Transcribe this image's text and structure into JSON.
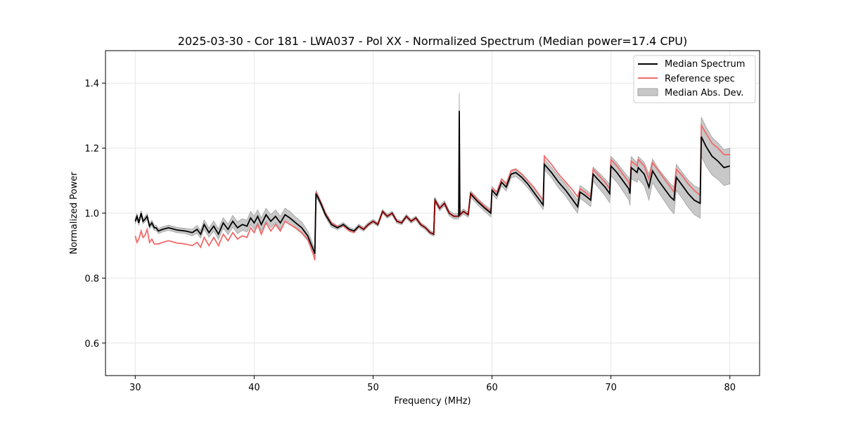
{
  "chart_data": {
    "type": "line",
    "title": "2025-03-30 - Cor 181 - LWA037 - Pol XX - Normalized Spectrum (Median power=17.4 CPU)",
    "xlabel": "Frequency (MHz)",
    "ylabel": "Normalized Power",
    "xlim": [
      27.5,
      82.5
    ],
    "ylim": [
      0.5,
      1.5
    ],
    "xticks": [
      30,
      40,
      50,
      60,
      70,
      80
    ],
    "yticks": [
      0.6,
      0.8,
      1.0,
      1.2,
      1.4
    ],
    "xtick_labels": [
      "30",
      "40",
      "50",
      "60",
      "70",
      "80"
    ],
    "ytick_labels": [
      "0.6",
      "0.8",
      "1.0",
      "1.2",
      "1.4"
    ],
    "grid": true,
    "legend_position": "top-right",
    "colors": {
      "median": "#000000",
      "reference": "#f06a6a",
      "mad_fill": "#c8c8c8",
      "mad_edge": "#a0a0a0",
      "overlap": "#8b0000"
    },
    "series": [
      {
        "name": "Median Spectrum",
        "x": [
          30.0,
          30.15,
          30.3,
          30.5,
          30.65,
          30.8,
          31.0,
          31.2,
          31.4,
          31.6,
          31.75,
          31.95,
          32.3,
          32.8,
          33.5,
          34.2,
          34.8,
          35.2,
          35.5,
          35.8,
          36.2,
          36.6,
          37.0,
          37.4,
          37.8,
          38.2,
          38.6,
          39.0,
          39.4,
          39.7,
          40.0,
          40.3,
          40.6,
          41.0,
          41.4,
          41.8,
          42.2,
          42.6,
          43.0,
          43.5,
          44.0,
          44.5,
          45.0,
          45.1,
          45.2,
          45.6,
          46.0,
          46.5,
          47.0,
          47.5,
          48.0,
          48.4,
          48.8,
          49.2,
          49.6,
          50.0,
          50.4,
          50.8,
          51.2,
          51.6,
          52.0,
          52.4,
          52.8,
          53.2,
          53.6,
          54.0,
          54.4,
          54.8,
          55.1,
          55.2,
          55.6,
          56.0,
          56.4,
          56.8,
          57.2,
          57.25,
          57.3,
          57.6,
          58.0,
          58.2,
          58.3,
          58.8,
          59.4,
          59.9,
          60.0,
          60.4,
          60.8,
          61.2,
          61.6,
          62.0,
          62.5,
          63.0,
          63.5,
          64.0,
          64.3,
          64.4,
          65.0,
          65.6,
          66.2,
          66.8,
          67.2,
          67.4,
          67.8,
          68.3,
          68.5,
          69.0,
          69.5,
          69.9,
          70.0,
          70.5,
          71.0,
          71.5,
          71.6,
          71.7,
          72.2,
          72.3,
          72.8,
          73.2,
          73.5,
          74.0,
          74.5,
          75.0,
          75.3,
          75.5,
          76.0,
          76.5,
          77.0,
          77.5,
          77.6,
          78.0,
          78.5,
          79.0,
          79.5,
          80.0
        ],
        "values": [
          0.975,
          0.99,
          0.97,
          1.0,
          0.975,
          0.98,
          0.99,
          0.96,
          0.97,
          0.955,
          0.955,
          0.945,
          0.95,
          0.955,
          0.948,
          0.945,
          0.94,
          0.95,
          0.935,
          0.965,
          0.94,
          0.96,
          0.935,
          0.97,
          0.95,
          0.975,
          0.955,
          0.965,
          0.96,
          0.985,
          0.97,
          0.99,
          0.965,
          0.995,
          0.975,
          0.99,
          0.97,
          0.995,
          0.985,
          0.97,
          0.955,
          0.93,
          0.885,
          0.875,
          1.06,
          1.03,
          0.995,
          0.965,
          0.955,
          0.965,
          0.95,
          0.945,
          0.96,
          0.95,
          0.965,
          0.975,
          0.965,
          1.005,
          0.99,
          1.0,
          0.975,
          0.97,
          0.99,
          0.975,
          0.985,
          0.965,
          0.955,
          0.94,
          0.935,
          1.04,
          1.015,
          1.03,
          1.0,
          0.99,
          0.99,
          1.315,
          0.995,
          1.005,
          0.995,
          1.06,
          1.055,
          1.035,
          1.015,
          1.0,
          1.07,
          1.055,
          1.095,
          1.08,
          1.12,
          1.125,
          1.11,
          1.09,
          1.065,
          1.04,
          1.025,
          1.15,
          1.125,
          1.095,
          1.07,
          1.04,
          1.02,
          1.065,
          1.055,
          1.04,
          1.12,
          1.1,
          1.08,
          1.06,
          1.145,
          1.125,
          1.1,
          1.075,
          1.06,
          1.14,
          1.125,
          1.14,
          1.12,
          1.08,
          1.13,
          1.1,
          1.075,
          1.05,
          1.04,
          1.11,
          1.085,
          1.06,
          1.04,
          1.03,
          1.235,
          1.205,
          1.175,
          1.16,
          1.14,
          1.145
        ]
      },
      {
        "name": "Reference spec",
        "x": [
          30.0,
          30.15,
          30.3,
          30.5,
          30.65,
          30.8,
          31.0,
          31.2,
          31.4,
          31.6,
          31.75,
          31.95,
          32.3,
          32.8,
          33.5,
          34.2,
          34.8,
          35.2,
          35.5,
          35.8,
          36.2,
          36.6,
          37.0,
          37.4,
          37.8,
          38.2,
          38.6,
          39.0,
          39.4,
          39.7,
          40.0,
          40.3,
          40.6,
          41.0,
          41.4,
          41.8,
          42.2,
          42.6,
          43.0,
          43.5,
          44.0,
          44.5,
          45.0,
          45.1,
          45.2,
          45.6,
          46.0,
          46.5,
          47.0,
          47.5,
          48.0,
          48.4,
          48.8,
          49.2,
          49.6,
          50.0,
          50.4,
          50.8,
          51.2,
          51.6,
          52.0,
          52.4,
          52.8,
          53.2,
          53.6,
          54.0,
          54.4,
          54.8,
          55.1,
          55.2,
          55.6,
          56.0,
          56.4,
          56.8,
          57.2,
          57.25,
          57.3,
          57.6,
          58.0,
          58.2,
          58.3,
          58.8,
          59.4,
          59.9,
          60.0,
          60.4,
          60.8,
          61.2,
          61.6,
          62.0,
          62.5,
          63.0,
          63.5,
          64.0,
          64.3,
          64.4,
          65.0,
          65.6,
          66.2,
          66.8,
          67.2,
          67.4,
          67.8,
          68.3,
          68.5,
          69.0,
          69.5,
          69.9,
          70.0,
          70.5,
          71.0,
          71.5,
          71.6,
          71.7,
          72.2,
          72.3,
          72.8,
          73.2,
          73.5,
          74.0,
          74.5,
          75.0,
          75.3,
          75.5,
          76.0,
          76.5,
          77.0,
          77.5,
          77.6,
          78.0,
          78.5,
          79.0,
          79.5,
          80.0
        ],
        "values": [
          0.93,
          0.91,
          0.92,
          0.945,
          0.925,
          0.93,
          0.95,
          0.91,
          0.92,
          0.905,
          0.905,
          0.905,
          0.91,
          0.915,
          0.908,
          0.905,
          0.9,
          0.91,
          0.895,
          0.925,
          0.9,
          0.925,
          0.9,
          0.935,
          0.915,
          0.94,
          0.92,
          0.93,
          0.925,
          0.955,
          0.94,
          0.965,
          0.935,
          0.97,
          0.945,
          0.965,
          0.945,
          0.975,
          0.965,
          0.955,
          0.94,
          0.92,
          0.87,
          0.855,
          1.065,
          1.035,
          1.0,
          0.97,
          0.96,
          0.96,
          0.945,
          0.94,
          0.96,
          0.95,
          0.965,
          0.975,
          0.965,
          1.005,
          0.99,
          1.0,
          0.975,
          0.97,
          0.99,
          0.975,
          0.985,
          0.965,
          0.955,
          0.94,
          0.935,
          1.04,
          1.015,
          1.03,
          1.0,
          0.99,
          0.99,
          1.2,
          0.995,
          1.005,
          0.995,
          1.06,
          1.06,
          1.04,
          1.02,
          1.005,
          1.075,
          1.065,
          1.105,
          1.09,
          1.13,
          1.135,
          1.12,
          1.1,
          1.08,
          1.055,
          1.04,
          1.175,
          1.15,
          1.12,
          1.095,
          1.07,
          1.05,
          1.075,
          1.065,
          1.05,
          1.135,
          1.115,
          1.095,
          1.075,
          1.165,
          1.145,
          1.12,
          1.095,
          1.08,
          1.16,
          1.145,
          1.165,
          1.145,
          1.105,
          1.155,
          1.13,
          1.105,
          1.08,
          1.065,
          1.135,
          1.115,
          1.09,
          1.07,
          1.055,
          1.27,
          1.245,
          1.215,
          1.2,
          1.18,
          1.18
        ]
      },
      {
        "name": "Median Abs. Dev.",
        "x": [
          30.0,
          30.15,
          30.3,
          30.5,
          30.65,
          30.8,
          31.0,
          31.2,
          31.4,
          31.6,
          31.75,
          31.95,
          32.3,
          32.8,
          33.5,
          34.2,
          34.8,
          35.2,
          35.5,
          35.8,
          36.2,
          36.6,
          37.0,
          37.4,
          37.8,
          38.2,
          38.6,
          39.0,
          39.4,
          39.7,
          40.0,
          40.3,
          40.6,
          41.0,
          41.4,
          41.8,
          42.2,
          42.6,
          43.0,
          43.5,
          44.0,
          44.5,
          45.0,
          45.1,
          45.2,
          45.6,
          46.0,
          46.5,
          47.0,
          47.5,
          48.0,
          48.4,
          48.8,
          49.2,
          49.6,
          50.0,
          50.4,
          50.8,
          51.2,
          51.6,
          52.0,
          52.4,
          52.8,
          53.2,
          53.6,
          54.0,
          54.4,
          54.8,
          55.1,
          55.2,
          55.6,
          56.0,
          56.4,
          56.8,
          57.2,
          57.25,
          57.3,
          57.6,
          58.0,
          58.2,
          58.3,
          58.8,
          59.4,
          59.9,
          60.0,
          60.4,
          60.8,
          61.2,
          61.6,
          62.0,
          62.5,
          63.0,
          63.5,
          64.0,
          64.3,
          64.4,
          65.0,
          65.6,
          66.2,
          66.8,
          67.2,
          67.4,
          67.8,
          68.3,
          68.5,
          69.0,
          69.5,
          69.9,
          70.0,
          70.5,
          71.0,
          71.5,
          71.6,
          71.7,
          72.2,
          72.3,
          72.8,
          73.2,
          73.5,
          74.0,
          74.5,
          75.0,
          75.3,
          75.5,
          76.0,
          76.5,
          77.0,
          77.5,
          77.6,
          78.0,
          78.5,
          79.0,
          79.5,
          80.0
        ],
        "half_width": [
          0.008,
          0.008,
          0.008,
          0.008,
          0.008,
          0.008,
          0.008,
          0.008,
          0.008,
          0.008,
          0.008,
          0.008,
          0.008,
          0.008,
          0.008,
          0.008,
          0.01,
          0.012,
          0.012,
          0.014,
          0.014,
          0.016,
          0.016,
          0.016,
          0.016,
          0.018,
          0.018,
          0.018,
          0.018,
          0.02,
          0.02,
          0.02,
          0.02,
          0.02,
          0.02,
          0.02,
          0.02,
          0.02,
          0.02,
          0.018,
          0.018,
          0.015,
          0.015,
          0.015,
          0.01,
          0.008,
          0.008,
          0.008,
          0.006,
          0.006,
          0.006,
          0.006,
          0.006,
          0.006,
          0.006,
          0.006,
          0.006,
          0.006,
          0.006,
          0.006,
          0.006,
          0.006,
          0.006,
          0.006,
          0.006,
          0.006,
          0.006,
          0.006,
          0.006,
          0.008,
          0.008,
          0.008,
          0.008,
          0.008,
          0.008,
          0.055,
          0.008,
          0.008,
          0.008,
          0.008,
          0.01,
          0.01,
          0.01,
          0.012,
          0.012,
          0.012,
          0.012,
          0.012,
          0.012,
          0.012,
          0.012,
          0.012,
          0.012,
          0.014,
          0.014,
          0.016,
          0.016,
          0.018,
          0.018,
          0.02,
          0.02,
          0.02,
          0.02,
          0.02,
          0.022,
          0.024,
          0.026,
          0.028,
          0.03,
          0.03,
          0.032,
          0.034,
          0.036,
          0.034,
          0.03,
          0.034,
          0.036,
          0.04,
          0.036,
          0.036,
          0.038,
          0.04,
          0.042,
          0.04,
          0.04,
          0.042,
          0.044,
          0.046,
          0.06,
          0.06,
          0.058,
          0.056,
          0.055,
          0.055
        ]
      }
    ],
    "legend": [
      "Median Spectrum",
      "Reference spec",
      "Median Abs. Dev."
    ]
  }
}
